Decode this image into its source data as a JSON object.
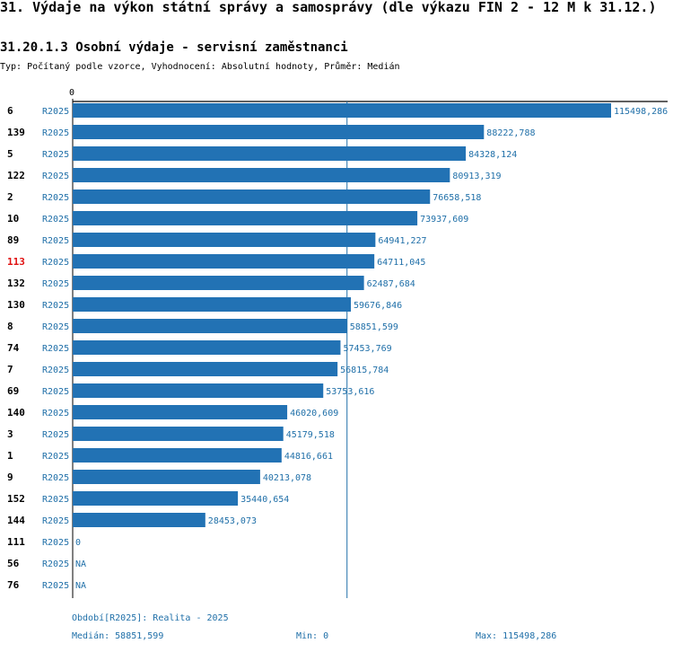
{
  "header": {
    "title": "31. Výdaje na výkon státní správy a samosprávy (dle výkazu FIN 2 - 12 M k 31.12.)",
    "subtitle": "31.20.1.3 Osobní výdaje - servisní zaměstnanci",
    "type_line": "Typ: Počítaný podle vzorce, Vyhodnocení: Absolutní hodnoty, Průměr: Medián"
  },
  "colors": {
    "bar": "#2272b4",
    "label": "#1f6fa8",
    "highlight": "#e01010"
  },
  "chart_data": {
    "type": "bar",
    "orientation": "horizontal",
    "axis_zero_label": "0",
    "xlim": [
      0,
      115498.286
    ],
    "median": 58851.599,
    "highlight_id": "113",
    "rows": [
      {
        "id": "6",
        "period": "R2025",
        "value": 115498.286,
        "label": "115498,286"
      },
      {
        "id": "139",
        "period": "R2025",
        "value": 88222.788,
        "label": "88222,788"
      },
      {
        "id": "5",
        "period": "R2025",
        "value": 84328.124,
        "label": "84328,124"
      },
      {
        "id": "122",
        "period": "R2025",
        "value": 80913.319,
        "label": "80913,319"
      },
      {
        "id": "2",
        "period": "R2025",
        "value": 76658.518,
        "label": "76658,518"
      },
      {
        "id": "10",
        "period": "R2025",
        "value": 73937.609,
        "label": "73937,609"
      },
      {
        "id": "89",
        "period": "R2025",
        "value": 64941.227,
        "label": "64941,227"
      },
      {
        "id": "113",
        "period": "R2025",
        "value": 64711.045,
        "label": "64711,045"
      },
      {
        "id": "132",
        "period": "R2025",
        "value": 62487.684,
        "label": "62487,684"
      },
      {
        "id": "130",
        "period": "R2025",
        "value": 59676.846,
        "label": "59676,846"
      },
      {
        "id": "8",
        "period": "R2025",
        "value": 58851.599,
        "label": "58851,599"
      },
      {
        "id": "74",
        "period": "R2025",
        "value": 57453.769,
        "label": "57453,769"
      },
      {
        "id": "7",
        "period": "R2025",
        "value": 56815.784,
        "label": "56815,784"
      },
      {
        "id": "69",
        "period": "R2025",
        "value": 53753.616,
        "label": "53753,616"
      },
      {
        "id": "140",
        "period": "R2025",
        "value": 46020.609,
        "label": "46020,609"
      },
      {
        "id": "3",
        "period": "R2025",
        "value": 45179.518,
        "label": "45179,518"
      },
      {
        "id": "1",
        "period": "R2025",
        "value": 44816.661,
        "label": "44816,661"
      },
      {
        "id": "9",
        "period": "R2025",
        "value": 40213.078,
        "label": "40213,078"
      },
      {
        "id": "152",
        "period": "R2025",
        "value": 35440.654,
        "label": "35440,654"
      },
      {
        "id": "144",
        "period": "R2025",
        "value": 28453.073,
        "label": "28453,073"
      },
      {
        "id": "111",
        "period": "R2025",
        "value": 0,
        "label": "0"
      },
      {
        "id": "56",
        "period": "R2025",
        "value": null,
        "label": "NA"
      },
      {
        "id": "76",
        "period": "R2025",
        "value": null,
        "label": "NA"
      }
    ]
  },
  "footer": {
    "period_note": "Období[R2025]: Realita - 2025",
    "median": "Medián: 58851,599",
    "min": "Min: 0",
    "max": "Max: 115498,286"
  }
}
